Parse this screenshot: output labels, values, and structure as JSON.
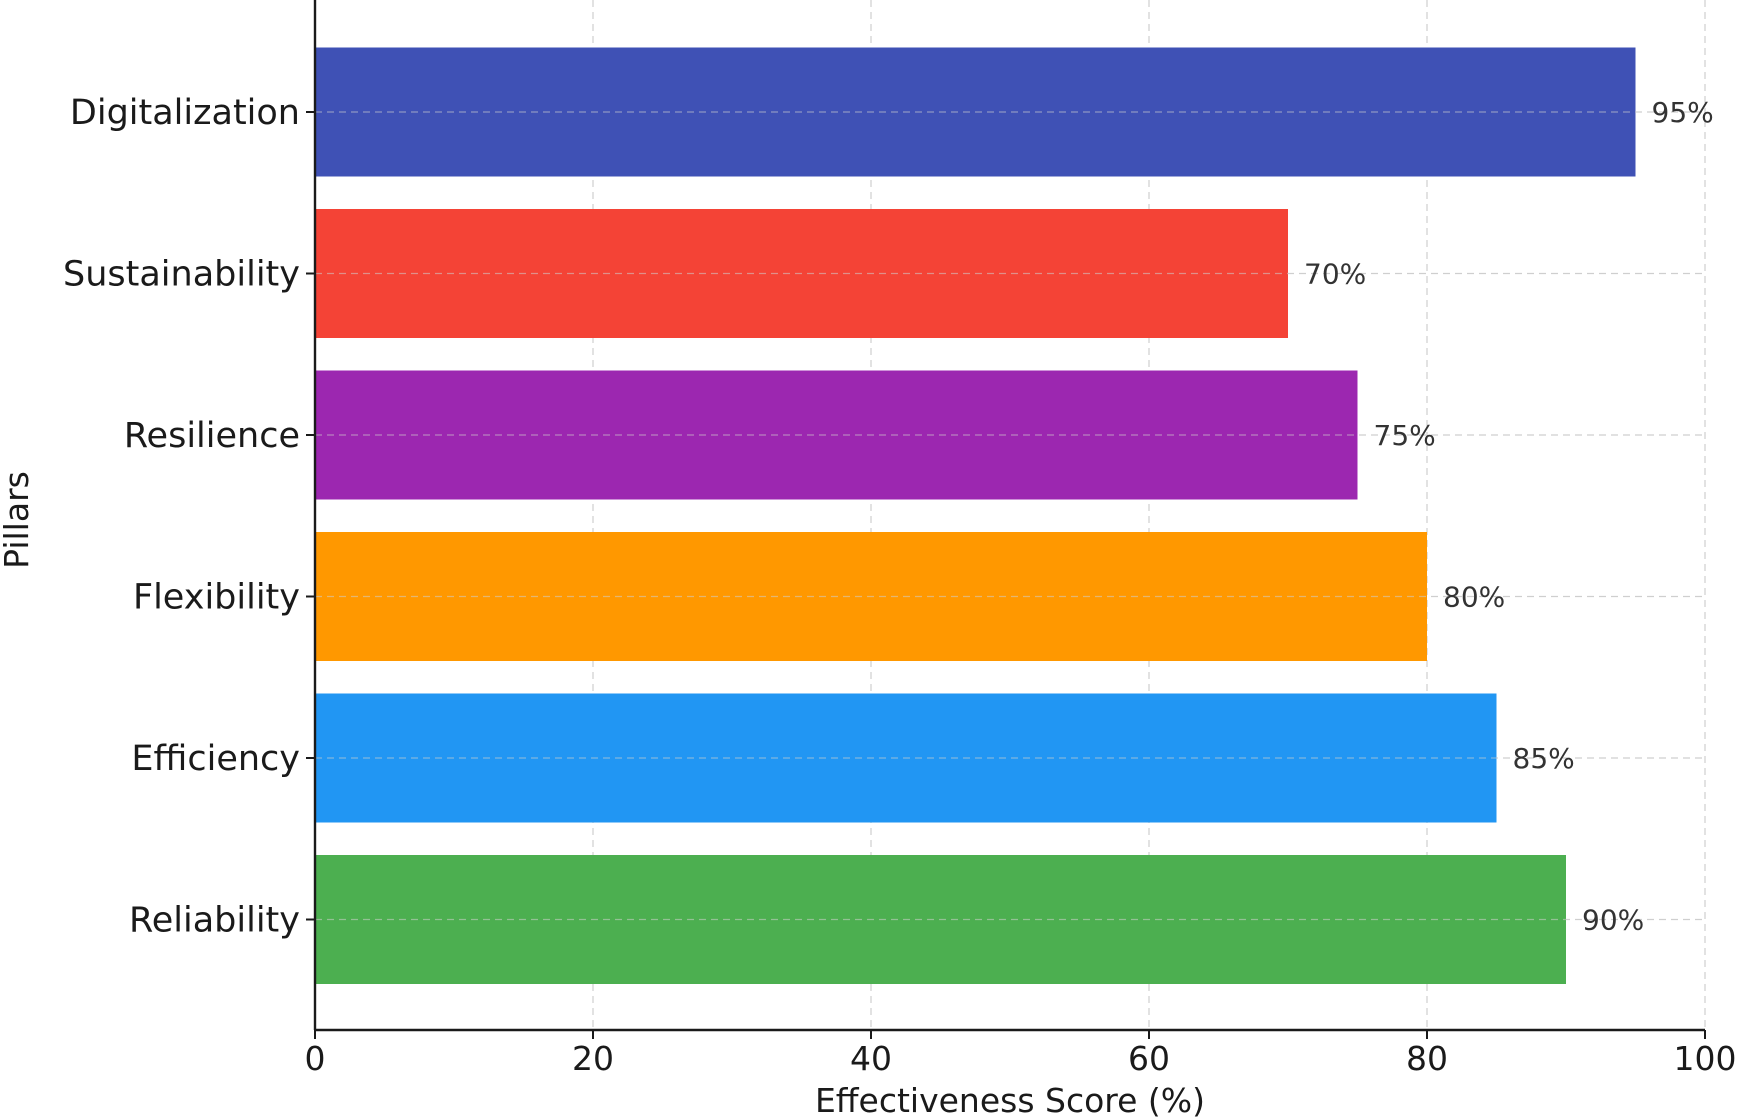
{
  "chart_data": {
    "type": "bar",
    "orientation": "horizontal",
    "title": "",
    "xlabel": "Effectiveness Score (%)",
    "ylabel": "Pillars",
    "xlim": [
      0,
      100
    ],
    "xticks": [
      0,
      20,
      40,
      60,
      80,
      100
    ],
    "grid": true,
    "categories": [
      "Digitalization",
      "Sustainability",
      "Resilience",
      "Flexibility",
      "Efficiency",
      "Reliability"
    ],
    "values": [
      95,
      70,
      75,
      80,
      85,
      90
    ],
    "value_labels": [
      "95%",
      "70%",
      "75%",
      "80%",
      "85%",
      "90%"
    ],
    "colors": [
      "#3f51b5",
      "#f44336",
      "#9c27b0",
      "#ff9800",
      "#2196f3",
      "#4caf50"
    ]
  }
}
